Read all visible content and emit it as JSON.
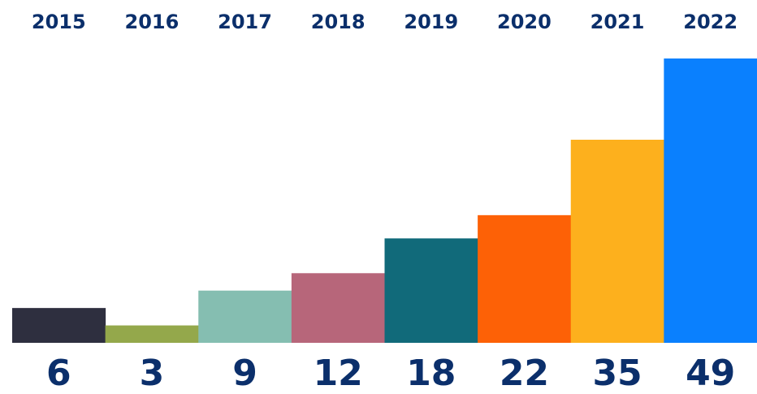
{
  "chart_data": {
    "type": "bar",
    "categories": [
      "2015",
      "2016",
      "2017",
      "2018",
      "2019",
      "2020",
      "2021",
      "2022"
    ],
    "values": [
      6,
      3,
      9,
      12,
      18,
      22,
      35,
      49
    ],
    "colors": [
      "#2e2f3f",
      "#94a84b",
      "#85beb1",
      "#b7667a",
      "#116a7a",
      "#fd6106",
      "#fdb01d",
      "#0a80fe"
    ],
    "ylim": [
      0,
      49
    ]
  }
}
